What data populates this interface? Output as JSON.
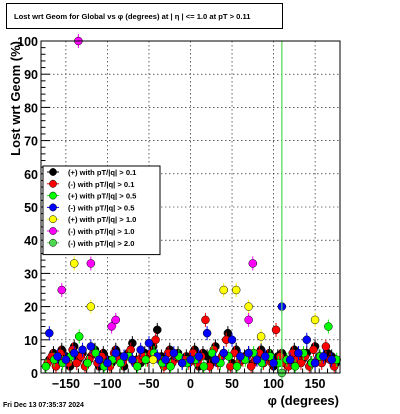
{
  "chart_data": {
    "type": "scatter",
    "title": "Lost wrt Geom for Global vs φ (degrees) at | η | <= 1.0 at pT > 0.11",
    "xlabel": "φ (degrees)",
    "ylabel": "Lost wrt Geom (%)",
    "xlim": [
      -180,
      180
    ],
    "ylim": [
      0,
      100
    ],
    "xticks": [
      -150,
      -100,
      -50,
      0,
      50,
      100,
      150
    ],
    "yticks": [
      0,
      10,
      20,
      30,
      40,
      50,
      60,
      70,
      80,
      90,
      100
    ],
    "grid": true,
    "legend_position": "middle-left",
    "series": [
      {
        "name": "(+) with pT/|q| > 0.1",
        "color": "#000000",
        "x": [
          -170,
          -165,
          -160,
          -155,
          -150,
          -145,
          -140,
          -135,
          -130,
          -125,
          -120,
          -115,
          -110,
          -105,
          -100,
          -95,
          -90,
          -85,
          -80,
          -75,
          -70,
          -65,
          -60,
          -55,
          -50,
          -45,
          -40,
          -35,
          -30,
          -25,
          -20,
          -15,
          -10,
          -5,
          0,
          5,
          10,
          15,
          20,
          25,
          30,
          35,
          40,
          45,
          50,
          55,
          60,
          65,
          70,
          75,
          80,
          85,
          90,
          95,
          100,
          105,
          110,
          115,
          120,
          125,
          130,
          135,
          140,
          145,
          150,
          155,
          160,
          165,
          170,
          175
        ],
        "y": [
          4,
          6,
          3,
          7,
          5,
          2,
          8,
          4,
          6,
          3,
          5,
          7,
          2,
          6,
          4,
          3,
          7,
          5,
          2,
          6,
          9,
          4,
          3,
          6,
          5,
          8,
          13,
          5,
          3,
          7,
          4,
          6,
          3,
          5,
          4,
          7,
          2,
          6,
          5,
          3,
          8,
          4,
          6,
          12,
          3,
          7,
          4,
          5,
          6,
          3,
          5,
          7,
          4,
          6,
          2,
          5,
          6,
          4,
          3,
          7,
          5,
          4,
          6,
          3,
          8,
          5,
          4,
          6,
          5,
          3
        ]
      },
      {
        "name": "(-) with pT/|q| > 0.1",
        "color": "#ff0000",
        "x": [
          -172,
          -167,
          -162,
          -157,
          -152,
          -147,
          -142,
          -137,
          -132,
          -127,
          -122,
          -117,
          -112,
          -107,
          -102,
          -97,
          -92,
          -87,
          -82,
          -77,
          -72,
          -67,
          -62,
          -57,
          -52,
          -47,
          -42,
          -37,
          -32,
          -27,
          -22,
          -17,
          -12,
          -7,
          -2,
          3,
          8,
          13,
          18,
          23,
          28,
          33,
          38,
          43,
          48,
          53,
          58,
          63,
          68,
          73,
          78,
          83,
          88,
          93,
          98,
          103,
          108,
          113,
          118,
          123,
          128,
          133,
          138,
          143,
          148,
          153,
          158,
          163,
          168,
          173
        ],
        "y": [
          3,
          5,
          2,
          6,
          4,
          3,
          7,
          3,
          5,
          2,
          4,
          6,
          3,
          5,
          3,
          2,
          6,
          4,
          3,
          5,
          7,
          3,
          4,
          5,
          4,
          6,
          10,
          4,
          2,
          6,
          3,
          5,
          4,
          4,
          3,
          6,
          3,
          5,
          16,
          2,
          7,
          3,
          5,
          10,
          2,
          6,
          3,
          4,
          5,
          2,
          4,
          6,
          3,
          5,
          3,
          13,
          5,
          3,
          2,
          6,
          4,
          3,
          5,
          2,
          7,
          4,
          3,
          8,
          4,
          2
        ]
      },
      {
        "name": "(+) with pT/|q| > 0.5",
        "color": "#00ff00",
        "x": [
          -174,
          -164,
          -154,
          -144,
          -134,
          -124,
          -114,
          -104,
          -94,
          -84,
          -74,
          -64,
          -54,
          -44,
          -34,
          -24,
          -14,
          -4,
          6,
          16,
          26,
          36,
          46,
          56,
          66,
          76,
          86,
          96,
          106,
          116,
          126,
          136,
          146,
          156,
          166,
          176
        ],
        "y": [
          2,
          4,
          3,
          5,
          11,
          3,
          6,
          2,
          4,
          3,
          5,
          2,
          4,
          6,
          3,
          2,
          5,
          3,
          4,
          2,
          6,
          3,
          5,
          2,
          4,
          6,
          3,
          5,
          3,
          4,
          2,
          6,
          3,
          5,
          14,
          4
        ]
      },
      {
        "name": "(-) with pT/|q| > 0.5",
        "color": "#0000ff",
        "x": [
          -170,
          -160,
          -150,
          -140,
          -130,
          -120,
          -110,
          -100,
          -90,
          -80,
          -70,
          -60,
          -50,
          -40,
          -30,
          -20,
          -10,
          0,
          10,
          20,
          30,
          40,
          50,
          60,
          70,
          80,
          90,
          100,
          110,
          120,
          130,
          140,
          150,
          160,
          170
        ],
        "y": [
          12,
          5,
          4,
          6,
          7,
          8,
          4,
          3,
          6,
          5,
          4,
          7,
          9,
          5,
          4,
          6,
          3,
          4,
          5,
          12,
          4,
          6,
          10,
          5,
          6,
          4,
          5,
          3,
          20,
          4,
          6,
          10,
          3,
          5,
          4
        ]
      },
      {
        "name": "(+) with pT/|q| > 1.0",
        "color": "#ffff00",
        "x": [
          -140,
          -120,
          -45,
          40,
          55,
          70,
          85,
          150
        ],
        "y": [
          33,
          20,
          4,
          25,
          25,
          20,
          11,
          16
        ]
      },
      {
        "name": "(-) with pT/|q| > 1.0",
        "color": "#ff00ff",
        "x": [
          -155,
          -135,
          -120,
          -95,
          -90,
          70,
          75
        ],
        "y": [
          25,
          100,
          33,
          14,
          16,
          16,
          33
        ]
      },
      {
        "name": "(-) with pT/|q| > 2.0",
        "color": "#4dd94d",
        "x": [
          110
        ],
        "y": [
          0
        ]
      }
    ]
  },
  "footer": {
    "timestamp": "Fri Dec 13 07:35:37 2024"
  }
}
